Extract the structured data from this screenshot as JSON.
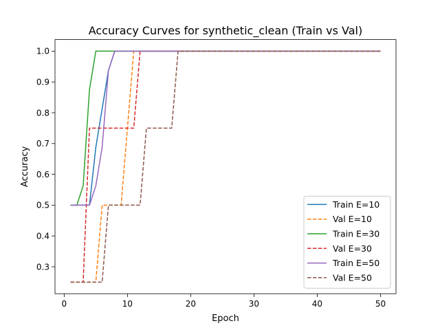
{
  "chart_data": {
    "type": "line",
    "title": "Accuracy Curves for synthetic_clean (Train vs Val)",
    "xlabel": "Epoch",
    "ylabel": "Accuracy",
    "xlim": [
      -1.45,
      52.45
    ],
    "ylim": [
      0.2125,
      1.0375
    ],
    "xticks": [
      0,
      10,
      20,
      30,
      40,
      50
    ],
    "yticks": [
      0.3,
      0.4,
      0.5,
      0.6,
      0.7,
      0.8,
      0.9,
      1.0
    ],
    "grid": false,
    "legend_position": "lower-right",
    "series": [
      {
        "name": "Train E=10",
        "color": "#1f77b4",
        "dash": "solid",
        "x": [
          1,
          2,
          3,
          4,
          5,
          6,
          7,
          8,
          9,
          10,
          50
        ],
        "y": [
          0.5,
          0.5,
          0.5,
          0.5,
          0.6875,
          0.8125,
          0.9375,
          1.0,
          1.0,
          1.0,
          1.0
        ]
      },
      {
        "name": "Val E=10",
        "color": "#ff7f0e",
        "dash": "dashed",
        "x": [
          1,
          2,
          3,
          4,
          5,
          6,
          7,
          8,
          9,
          10,
          11,
          50
        ],
        "y": [
          0.25,
          0.25,
          0.25,
          0.25,
          0.25,
          0.5,
          0.5,
          0.5,
          0.5,
          0.75,
          1.0,
          1.0
        ]
      },
      {
        "name": "Train E=30",
        "color": "#2ca02c",
        "dash": "solid",
        "x": [
          1,
          2,
          3,
          4,
          5,
          6,
          50
        ],
        "y": [
          0.5,
          0.5,
          0.5625,
          0.875,
          1.0,
          1.0,
          1.0
        ]
      },
      {
        "name": "Val E=30",
        "color": "#d62728",
        "dash": "dashed",
        "x": [
          1,
          2,
          3,
          4,
          5,
          6,
          7,
          8,
          9,
          10,
          11,
          12,
          50
        ],
        "y": [
          0.25,
          0.25,
          0.25,
          0.75,
          0.75,
          0.75,
          0.75,
          0.75,
          0.75,
          0.75,
          0.75,
          1.0,
          1.0
        ]
      },
      {
        "name": "Train E=50",
        "color": "#9467bd",
        "dash": "solid",
        "x": [
          1,
          2,
          3,
          4,
          5,
          6,
          7,
          8,
          50
        ],
        "y": [
          0.5,
          0.5,
          0.5,
          0.5,
          0.5625,
          0.6875,
          0.9375,
          1.0,
          1.0
        ]
      },
      {
        "name": "Val E=50",
        "color": "#8c564b",
        "dash": "dashed",
        "x": [
          1,
          2,
          3,
          4,
          5,
          6,
          7,
          8,
          9,
          10,
          11,
          12,
          13,
          14,
          15,
          16,
          17,
          18,
          50
        ],
        "y": [
          0.25,
          0.25,
          0.25,
          0.25,
          0.25,
          0.25,
          0.5,
          0.5,
          0.5,
          0.5,
          0.5,
          0.5,
          0.75,
          0.75,
          0.75,
          0.75,
          0.75,
          1.0,
          1.0
        ]
      }
    ]
  }
}
